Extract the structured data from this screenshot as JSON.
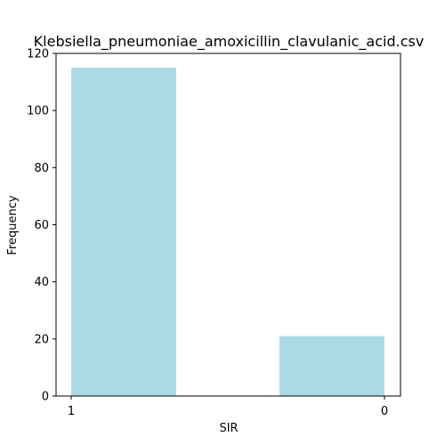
{
  "chart_data": {
    "type": "bar",
    "title": "Klebsiella_pneumoniae_amoxicillin_clavulanic_acid.csv",
    "xlabel": "SIR",
    "ylabel": "Frequency",
    "categories": [
      "1",
      "0"
    ],
    "values": [
      115,
      21
    ],
    "ylim": [
      0,
      120
    ],
    "yticks": [
      0,
      20,
      40,
      60,
      80,
      100,
      120
    ],
    "bar_color": "#add8e6",
    "grid": false,
    "legend": "none"
  }
}
